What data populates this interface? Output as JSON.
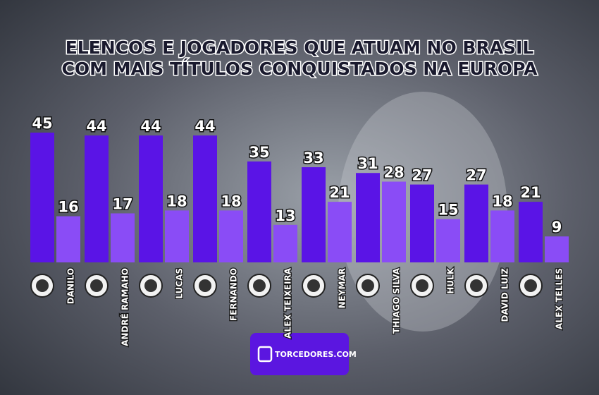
{
  "chart_data": {
    "type": "grouped-bar",
    "title": [
      "ELENCOS E JOGADORES QUE ATUAM NO BRASIL",
      "COM MAIS TÍTULOS CONQUISTADOS NA EUROPA"
    ],
    "categories": [
      "DANILO",
      "ANDRÉ RAMAHO",
      "LUCAS",
      "FERNANDO",
      "ALEX TEIXEIRA",
      "NEYMAR",
      "THIAGO SILVA",
      "HULK",
      "DAVID LUIZ",
      "ALEX TELLES"
    ],
    "series": [
      {
        "color": "#5a14e6",
        "values": [
          45,
          44,
          44,
          44,
          35,
          33,
          31,
          27,
          27,
          21
        ]
      },
      {
        "color": "#8a4cf6",
        "values": [
          16,
          17,
          18,
          18,
          13,
          21,
          28,
          15,
          18,
          9
        ]
      }
    ],
    "ylim": [
      0,
      45
    ]
  },
  "brand": "TORCEDORES.COM"
}
